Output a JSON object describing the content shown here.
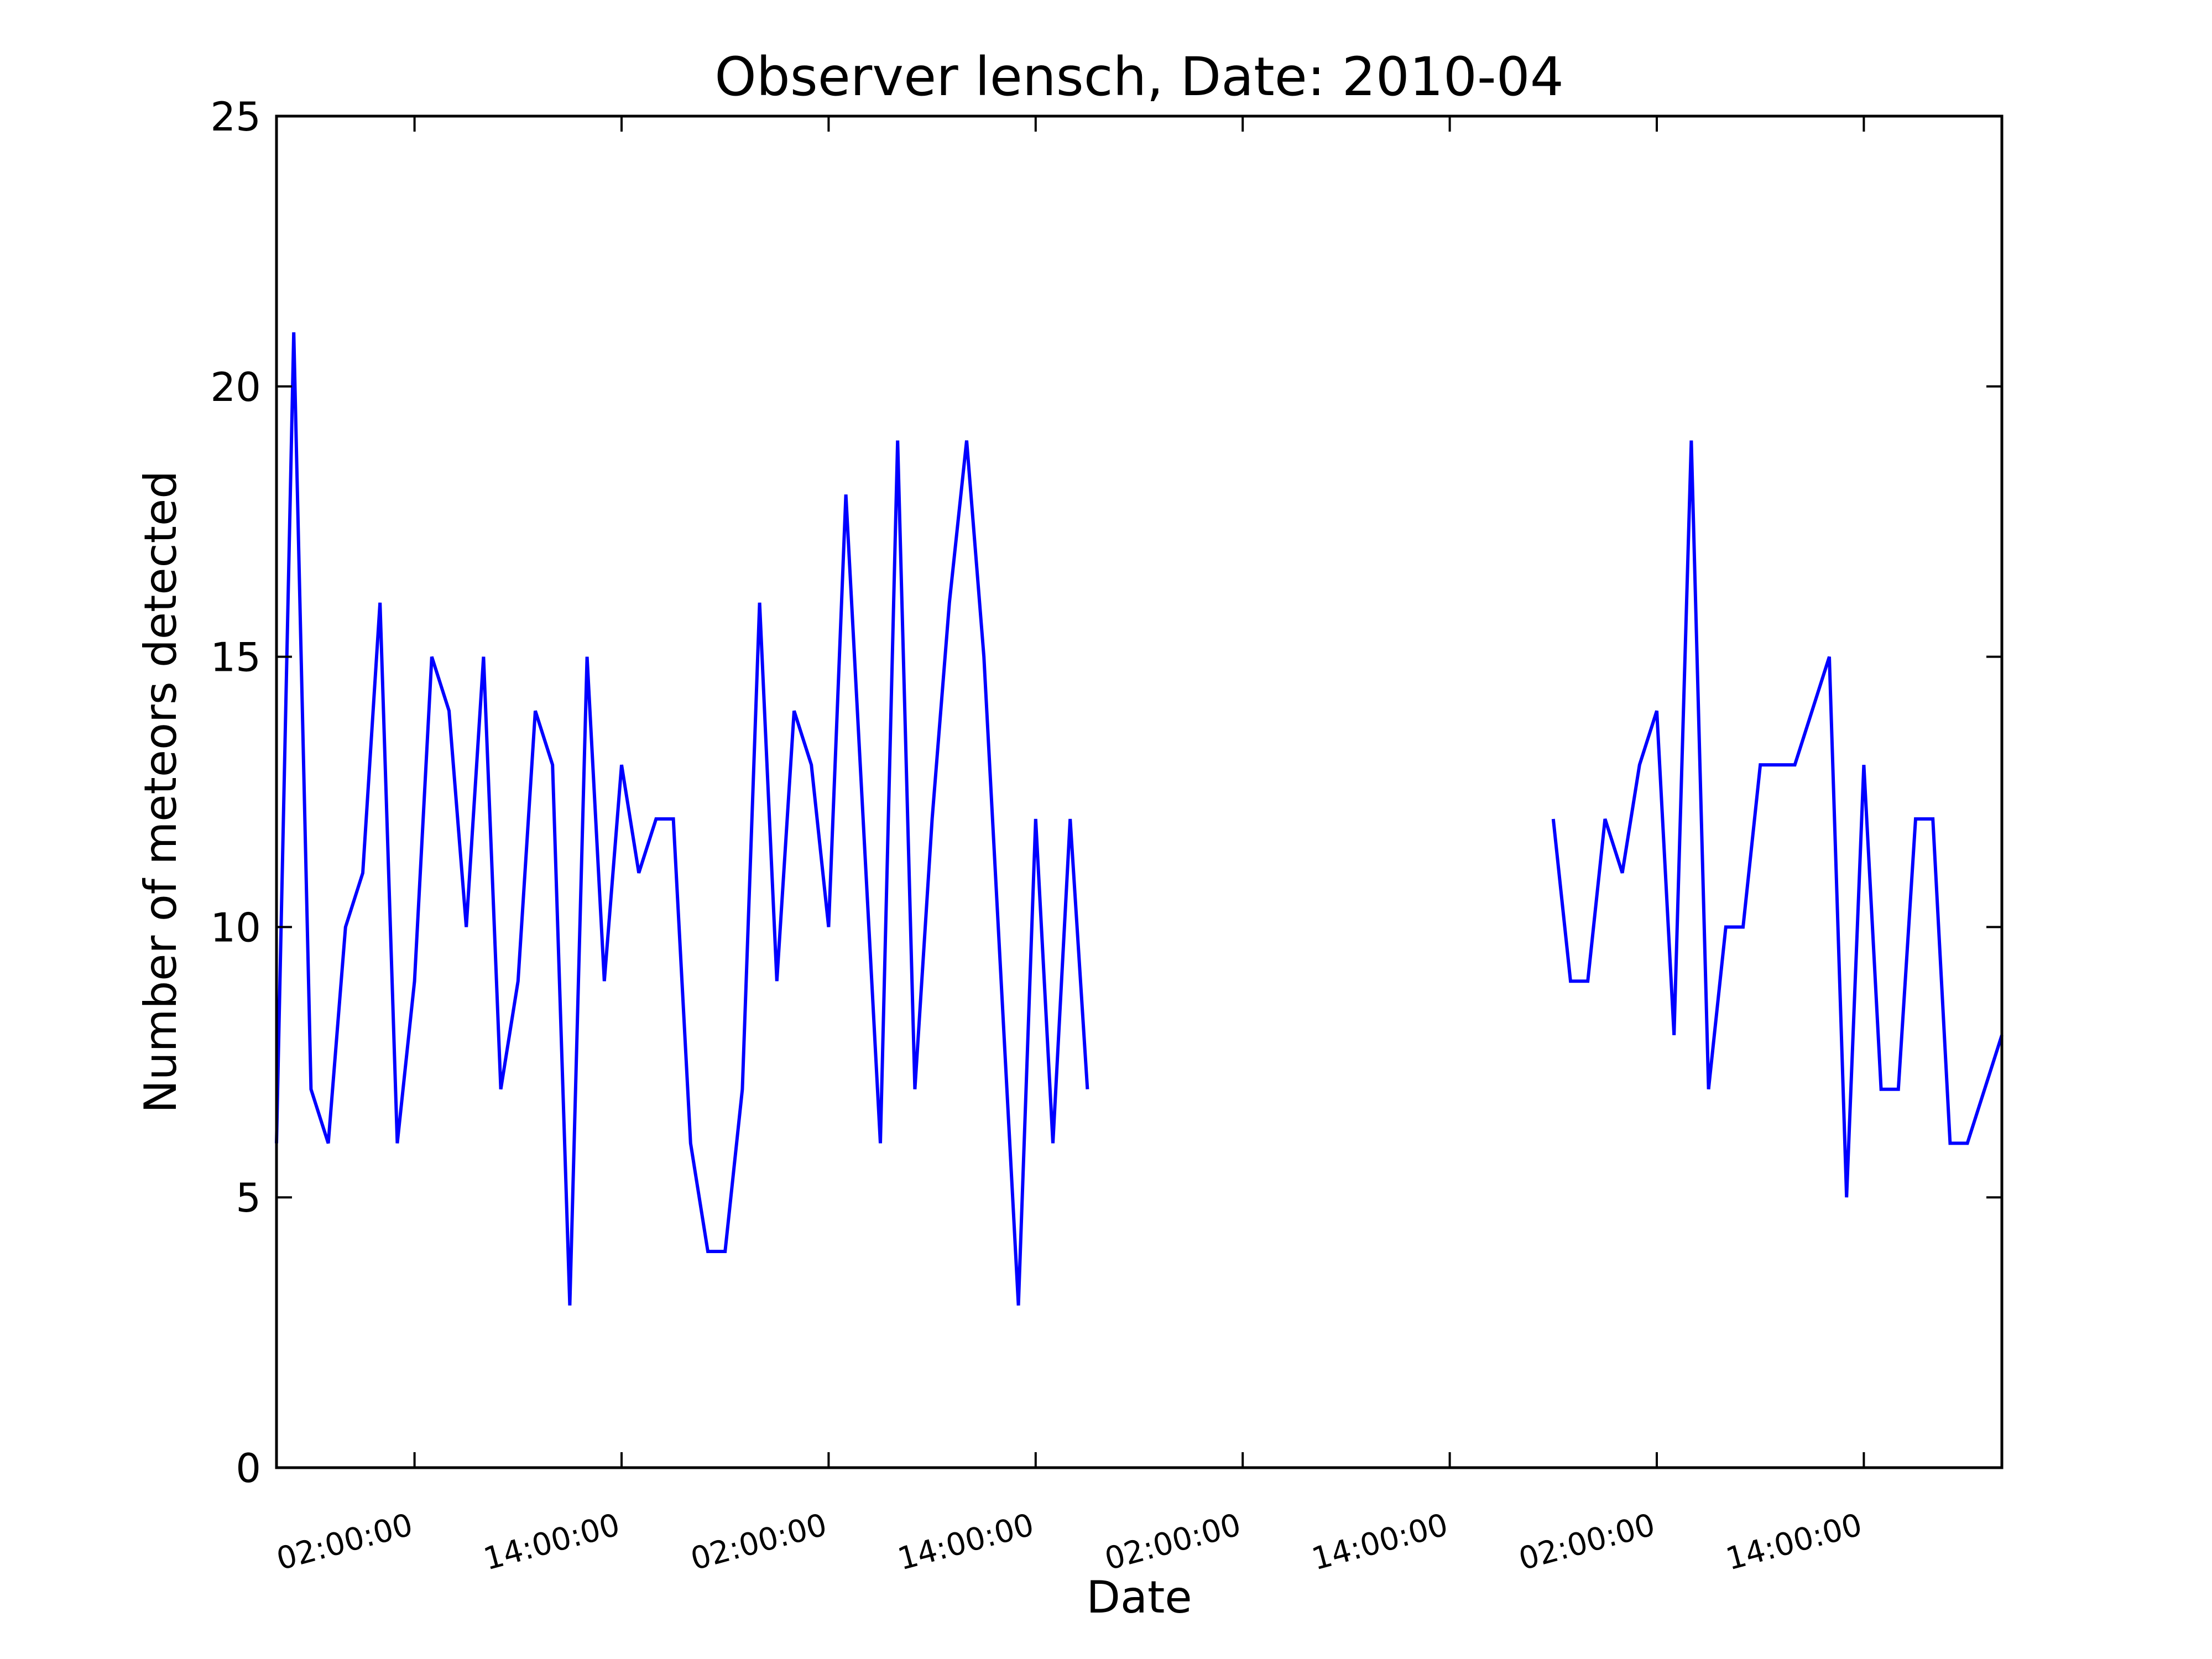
{
  "chart_data": {
    "type": "line",
    "title": "Observer lensch, Date: 2010-04",
    "xlabel": "Date",
    "ylabel": "Number of meteors detected",
    "ylim": [
      0,
      25
    ],
    "yticks": [
      0,
      5,
      10,
      15,
      20,
      25
    ],
    "yticklabels": [
      "0",
      "5",
      "10",
      "15",
      "20",
      "25"
    ],
    "xlim_hours": [
      -8,
      92
    ],
    "xticks_hours": [
      0,
      12,
      24,
      36,
      48,
      60,
      72,
      84
    ],
    "xticklabels": [
      "02:00:00",
      "14:00:00",
      "02:00:00",
      "14:00:00",
      "02:00:00",
      "14:00:00",
      "02:00:00",
      "14:00:00"
    ],
    "grid": false,
    "line_color": "#0000ff",
    "series": [
      {
        "segments": [
          [
            [
              -8,
              6
            ],
            [
              -7,
              21
            ],
            [
              -6,
              7
            ],
            [
              -5,
              6
            ],
            [
              -4,
              10
            ],
            [
              -3,
              11
            ],
            [
              -2,
              16
            ],
            [
              -1,
              6
            ],
            [
              0,
              9
            ],
            [
              1,
              15
            ],
            [
              2,
              14
            ],
            [
              3,
              10
            ],
            [
              4,
              15
            ],
            [
              5,
              7
            ],
            [
              6,
              9
            ],
            [
              7,
              14
            ],
            [
              8,
              13
            ],
            [
              9,
              3
            ],
            [
              10,
              15
            ],
            [
              11,
              9
            ],
            [
              12,
              13
            ],
            [
              13,
              11
            ],
            [
              14,
              12
            ],
            [
              15,
              12
            ],
            [
              16,
              6
            ],
            [
              17,
              4
            ],
            [
              18,
              4
            ],
            [
              19,
              7
            ],
            [
              20,
              16
            ],
            [
              21,
              9
            ],
            [
              22,
              14
            ],
            [
              23,
              13
            ],
            [
              24,
              10
            ],
            [
              25,
              18
            ],
            [
              26,
              12
            ],
            [
              27,
              6
            ],
            [
              28,
              19
            ],
            [
              29,
              7
            ],
            [
              30,
              12
            ],
            [
              31,
              16
            ],
            [
              32,
              19
            ],
            [
              33,
              15
            ],
            [
              34,
              9
            ],
            [
              35,
              3
            ],
            [
              36,
              12
            ],
            [
              37,
              6
            ],
            [
              38,
              12
            ],
            [
              39,
              7
            ]
          ],
          [
            [
              66,
              12
            ],
            [
              67,
              9
            ],
            [
              68,
              9
            ],
            [
              69,
              12
            ],
            [
              70,
              11
            ],
            [
              71,
              13
            ],
            [
              72,
              14
            ],
            [
              73,
              8
            ],
            [
              74,
              19
            ],
            [
              75,
              7
            ],
            [
              76,
              10
            ],
            [
              77,
              10
            ],
            [
              78,
              13
            ],
            [
              79,
              13
            ],
            [
              80,
              13
            ],
            [
              81,
              14
            ],
            [
              82,
              15
            ],
            [
              83,
              5
            ],
            [
              84,
              13
            ],
            [
              85,
              7
            ],
            [
              86,
              7
            ],
            [
              87,
              12
            ],
            [
              88,
              12
            ],
            [
              89,
              6
            ],
            [
              90,
              6
            ],
            [
              91,
              7
            ],
            [
              92,
              8
            ]
          ]
        ]
      }
    ]
  }
}
